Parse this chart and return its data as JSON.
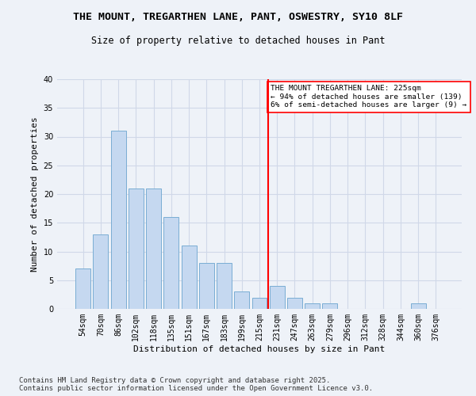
{
  "title": "THE MOUNT, TREGARTHEN LANE, PANT, OSWESTRY, SY10 8LF",
  "subtitle": "Size of property relative to detached houses in Pant",
  "xlabel": "Distribution of detached houses by size in Pant",
  "ylabel": "Number of detached properties",
  "bar_labels": [
    "54sqm",
    "70sqm",
    "86sqm",
    "102sqm",
    "118sqm",
    "135sqm",
    "151sqm",
    "167sqm",
    "183sqm",
    "199sqm",
    "215sqm",
    "231sqm",
    "247sqm",
    "263sqm",
    "279sqm",
    "296sqm",
    "312sqm",
    "328sqm",
    "344sqm",
    "360sqm",
    "376sqm"
  ],
  "bar_values": [
    7,
    13,
    31,
    21,
    21,
    16,
    11,
    8,
    8,
    3,
    2,
    4,
    2,
    1,
    1,
    0,
    0,
    0,
    0,
    1,
    0
  ],
  "bar_color": "#c5d8f0",
  "bar_edgecolor": "#7aadd4",
  "vline_x": 10.5,
  "vline_color": "red",
  "vline_label": "THE MOUNT TREGARTHEN LANE: 225sqm\n← 94% of detached houses are smaller (139)\n6% of semi-detached houses are larger (9) →",
  "annotation_box_facecolor": "white",
  "annotation_box_edgecolor": "red",
  "ylim": [
    0,
    40
  ],
  "yticks": [
    0,
    5,
    10,
    15,
    20,
    25,
    30,
    35,
    40
  ],
  "grid_color": "#d0d8e8",
  "background_color": "#eef2f8",
  "footer": "Contains HM Land Registry data © Crown copyright and database right 2025.\nContains public sector information licensed under the Open Government Licence v3.0.",
  "title_fontsize": 9.5,
  "subtitle_fontsize": 8.5,
  "xlabel_fontsize": 8,
  "ylabel_fontsize": 8,
  "tick_fontsize": 7,
  "footer_fontsize": 6.5
}
